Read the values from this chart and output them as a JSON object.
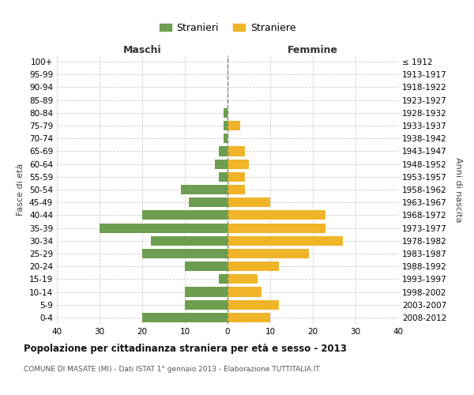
{
  "age_groups": [
    "100+",
    "95-99",
    "90-94",
    "85-89",
    "80-84",
    "75-79",
    "70-74",
    "65-69",
    "60-64",
    "55-59",
    "50-54",
    "45-49",
    "40-44",
    "35-39",
    "30-34",
    "25-29",
    "20-24",
    "15-19",
    "10-14",
    "5-9",
    "0-4"
  ],
  "birth_years": [
    "≤ 1912",
    "1913-1917",
    "1918-1922",
    "1923-1927",
    "1928-1932",
    "1933-1937",
    "1938-1942",
    "1943-1947",
    "1948-1952",
    "1953-1957",
    "1958-1962",
    "1963-1967",
    "1968-1972",
    "1973-1977",
    "1978-1982",
    "1983-1987",
    "1988-1992",
    "1993-1997",
    "1998-2002",
    "2003-2007",
    "2008-2012"
  ],
  "males": [
    0,
    0,
    0,
    0,
    1,
    1,
    1,
    2,
    3,
    2,
    11,
    9,
    20,
    30,
    18,
    20,
    10,
    2,
    10,
    10,
    20
  ],
  "females": [
    0,
    0,
    0,
    0,
    0,
    3,
    0,
    4,
    5,
    4,
    4,
    10,
    23,
    23,
    27,
    19,
    12,
    7,
    8,
    12,
    10
  ],
  "male_color": "#6d9e4f",
  "female_color": "#f0b429",
  "title": "Popolazione per cittadinanza straniera per età e sesso - 2013",
  "subtitle": "COMUNE DI MASATE (MI) - Dati ISTAT 1° gennaio 2013 - Elaborazione TUTTITALIA.IT",
  "xlabel_left": "Maschi",
  "xlabel_right": "Femmine",
  "ylabel_left": "Fasce di età",
  "ylabel_right": "Anni di nascita",
  "legend_male": "Stranieri",
  "legend_female": "Straniere",
  "xlim": 40,
  "background_color": "#ffffff",
  "grid_color": "#cccccc"
}
